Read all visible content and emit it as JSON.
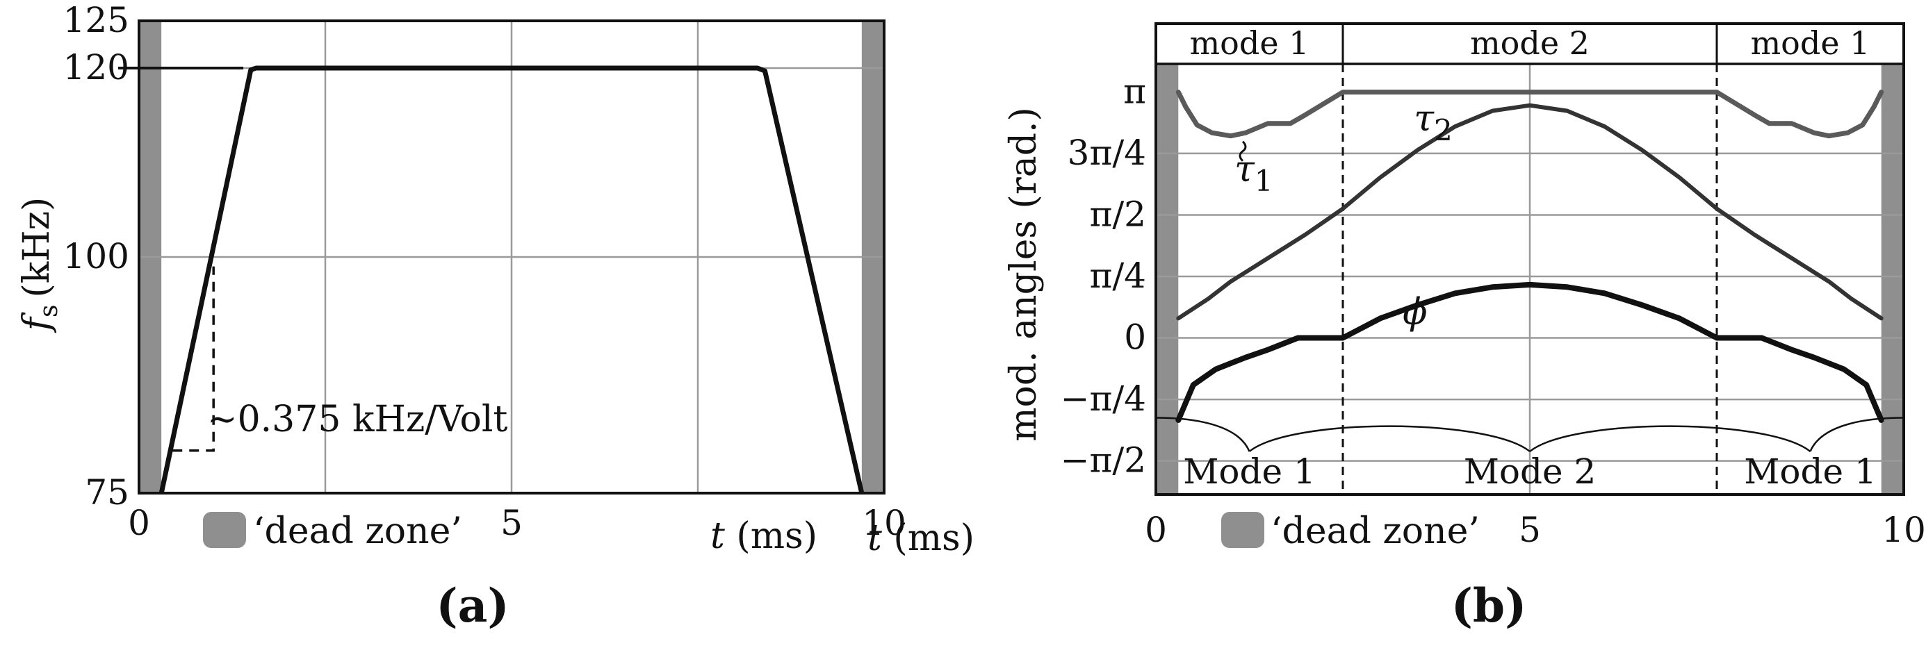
{
  "chart_data": [
    {
      "type": "line",
      "panel_label": "(a)",
      "xlabel": "t (ms)",
      "ylabel": "f_s (kHz)",
      "ylabel_main": "f",
      "ylabel_sub": "s",
      "ylabel_unit": "(kHz)",
      "xlim": [
        0,
        10
      ],
      "ylim": [
        75,
        125
      ],
      "x_tick_labels": [
        "0",
        "5",
        "10"
      ],
      "x_tick_values": [
        0,
        5,
        10
      ],
      "y_tick_labels": [
        "75",
        "100",
        "120",
        "125"
      ],
      "y_tick_values": [
        75,
        100,
        120,
        125
      ],
      "grid": true,
      "series": [
        {
          "x": [
            0.3,
            1.5,
            1.57,
            8.3,
            8.4,
            9.7
          ],
          "y": [
            75,
            119.8,
            120,
            120,
            119.7,
            75
          ]
        }
      ],
      "dead_zones": [
        [
          0,
          0.3
        ],
        [
          9.7,
          10
        ]
      ],
      "legend": {
        "label": "‘dead zone’",
        "color": "#8f8f8f"
      },
      "annotation": {
        "text": "∼0.375 kHz/Volt",
        "slope_triangle": {
          "x": [
            0.45,
            1.0
          ],
          "y": [
            79.5,
            99
          ]
        }
      },
      "reference_line": {
        "y": 120,
        "x": [
          0,
          1.4
        ]
      },
      "colors": {
        "curve": "#111111",
        "dead_zone": "#8f8f8f",
        "grid": "#9a9a9a"
      }
    },
    {
      "type": "line",
      "panel_label": "(b)",
      "xlabel": "t (ms)",
      "ylabel": "mod. angles (rad.)",
      "xlim": [
        0,
        10
      ],
      "ylim": [
        -2.0,
        3.5
      ],
      "x_tick_labels": [
        "0",
        "5",
        "10"
      ],
      "x_tick_values": [
        0,
        5,
        10
      ],
      "y_tick_labels": [
        "π",
        "3π/4",
        "π/2",
        "π/4",
        "0",
        "−π/4",
        "−π/2"
      ],
      "y_tick_values": [
        3.1416,
        2.3562,
        1.5708,
        0.7854,
        0,
        -0.7854,
        -1.5708
      ],
      "grid": true,
      "mode_boundaries": [
        2.5,
        7.5
      ],
      "top_modes": [
        "mode 1",
        "mode 2",
        "mode 1"
      ],
      "bottom_modes": [
        "Mode 1",
        "Mode 2",
        "Mode 1"
      ],
      "series": [
        {
          "name": "τ1",
          "label_main": "τ",
          "label_sub": "1",
          "x": [
            0.3,
            0.4,
            0.55,
            0.75,
            1.0,
            1.2,
            1.5,
            1.8,
            2.0,
            2.5,
            7.5,
            8.0,
            8.2,
            8.5,
            8.8,
            9.0,
            9.25,
            9.45,
            9.6,
            9.7
          ],
          "y": [
            3.14,
            2.95,
            2.72,
            2.62,
            2.58,
            2.62,
            2.74,
            2.74,
            2.85,
            3.14,
            3.14,
            2.85,
            2.74,
            2.74,
            2.62,
            2.58,
            2.62,
            2.72,
            2.95,
            3.14
          ]
        },
        {
          "name": "τ2",
          "label_main": "τ",
          "label_sub": "2",
          "x": [
            0.3,
            0.7,
            1.0,
            1.5,
            2.0,
            2.5,
            3.0,
            3.5,
            4.0,
            4.5,
            5.0,
            5.5,
            6.0,
            6.5,
            7.0,
            7.5,
            8.0,
            8.5,
            9.0,
            9.3,
            9.7
          ],
          "y": [
            0.25,
            0.5,
            0.72,
            1.02,
            1.32,
            1.65,
            2.05,
            2.4,
            2.7,
            2.9,
            2.97,
            2.9,
            2.7,
            2.4,
            2.05,
            1.65,
            1.32,
            1.02,
            0.72,
            0.5,
            0.25
          ]
        },
        {
          "name": "ϕ",
          "label_main": "ϕ",
          "label_sub": "",
          "x": [
            0.3,
            0.5,
            0.8,
            1.2,
            1.5,
            1.9,
            2.5,
            3.0,
            3.5,
            4.0,
            4.5,
            5.0,
            5.5,
            6.0,
            6.5,
            7.0,
            7.5,
            8.1,
            8.5,
            8.8,
            9.2,
            9.5,
            9.7
          ],
          "y": [
            -1.05,
            -0.6,
            -0.4,
            -0.25,
            -0.15,
            0,
            0,
            0.25,
            0.42,
            0.57,
            0.65,
            0.68,
            0.65,
            0.57,
            0.42,
            0.25,
            0,
            0,
            -0.15,
            -0.25,
            -0.4,
            -0.6,
            -1.05
          ]
        }
      ],
      "mode_scallops": {
        "baseline": -1.02,
        "cusps": [
          1.25,
          5.0,
          8.75
        ],
        "cusp_depth": -1.45
      },
      "dead_zones": [
        [
          0,
          0.3
        ],
        [
          9.7,
          10
        ]
      ],
      "legend": {
        "label": "‘dead zone’",
        "color": "#8f8f8f"
      },
      "colors": {
        "tau1": "#5a5a5a",
        "tau2": "#333333",
        "phi": "#111111",
        "dead_zone": "#8f8f8f",
        "grid": "#9a9a9a"
      }
    }
  ]
}
